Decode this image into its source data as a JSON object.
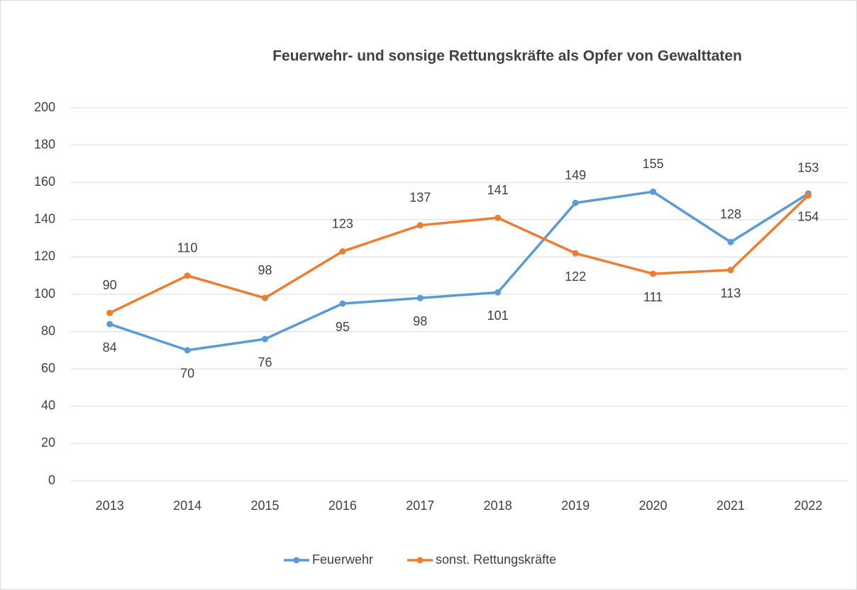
{
  "chart_data": {
    "type": "line",
    "title": "Feuerwehr- und sonsige Rettungskräfte als Opfer von Gewalttaten",
    "categories": [
      "2013",
      "2014",
      "2015",
      "2016",
      "2017",
      "2018",
      "2019",
      "2020",
      "2021",
      "2022"
    ],
    "series": [
      {
        "name": "Feuerwehr",
        "color": "#5b9bd5",
        "values": [
          84,
          70,
          76,
          95,
          98,
          101,
          149,
          155,
          128,
          154
        ]
      },
      {
        "name": "sonst. Rettungskräfte",
        "color": "#ed7d31",
        "values": [
          90,
          110,
          98,
          123,
          137,
          141,
          122,
          111,
          113,
          153
        ]
      }
    ],
    "ylim": [
      0,
      200
    ],
    "yticks": [
      0,
      20,
      40,
      60,
      80,
      100,
      120,
      140,
      160,
      180,
      200
    ],
    "grid": true,
    "legend": "bottom"
  }
}
